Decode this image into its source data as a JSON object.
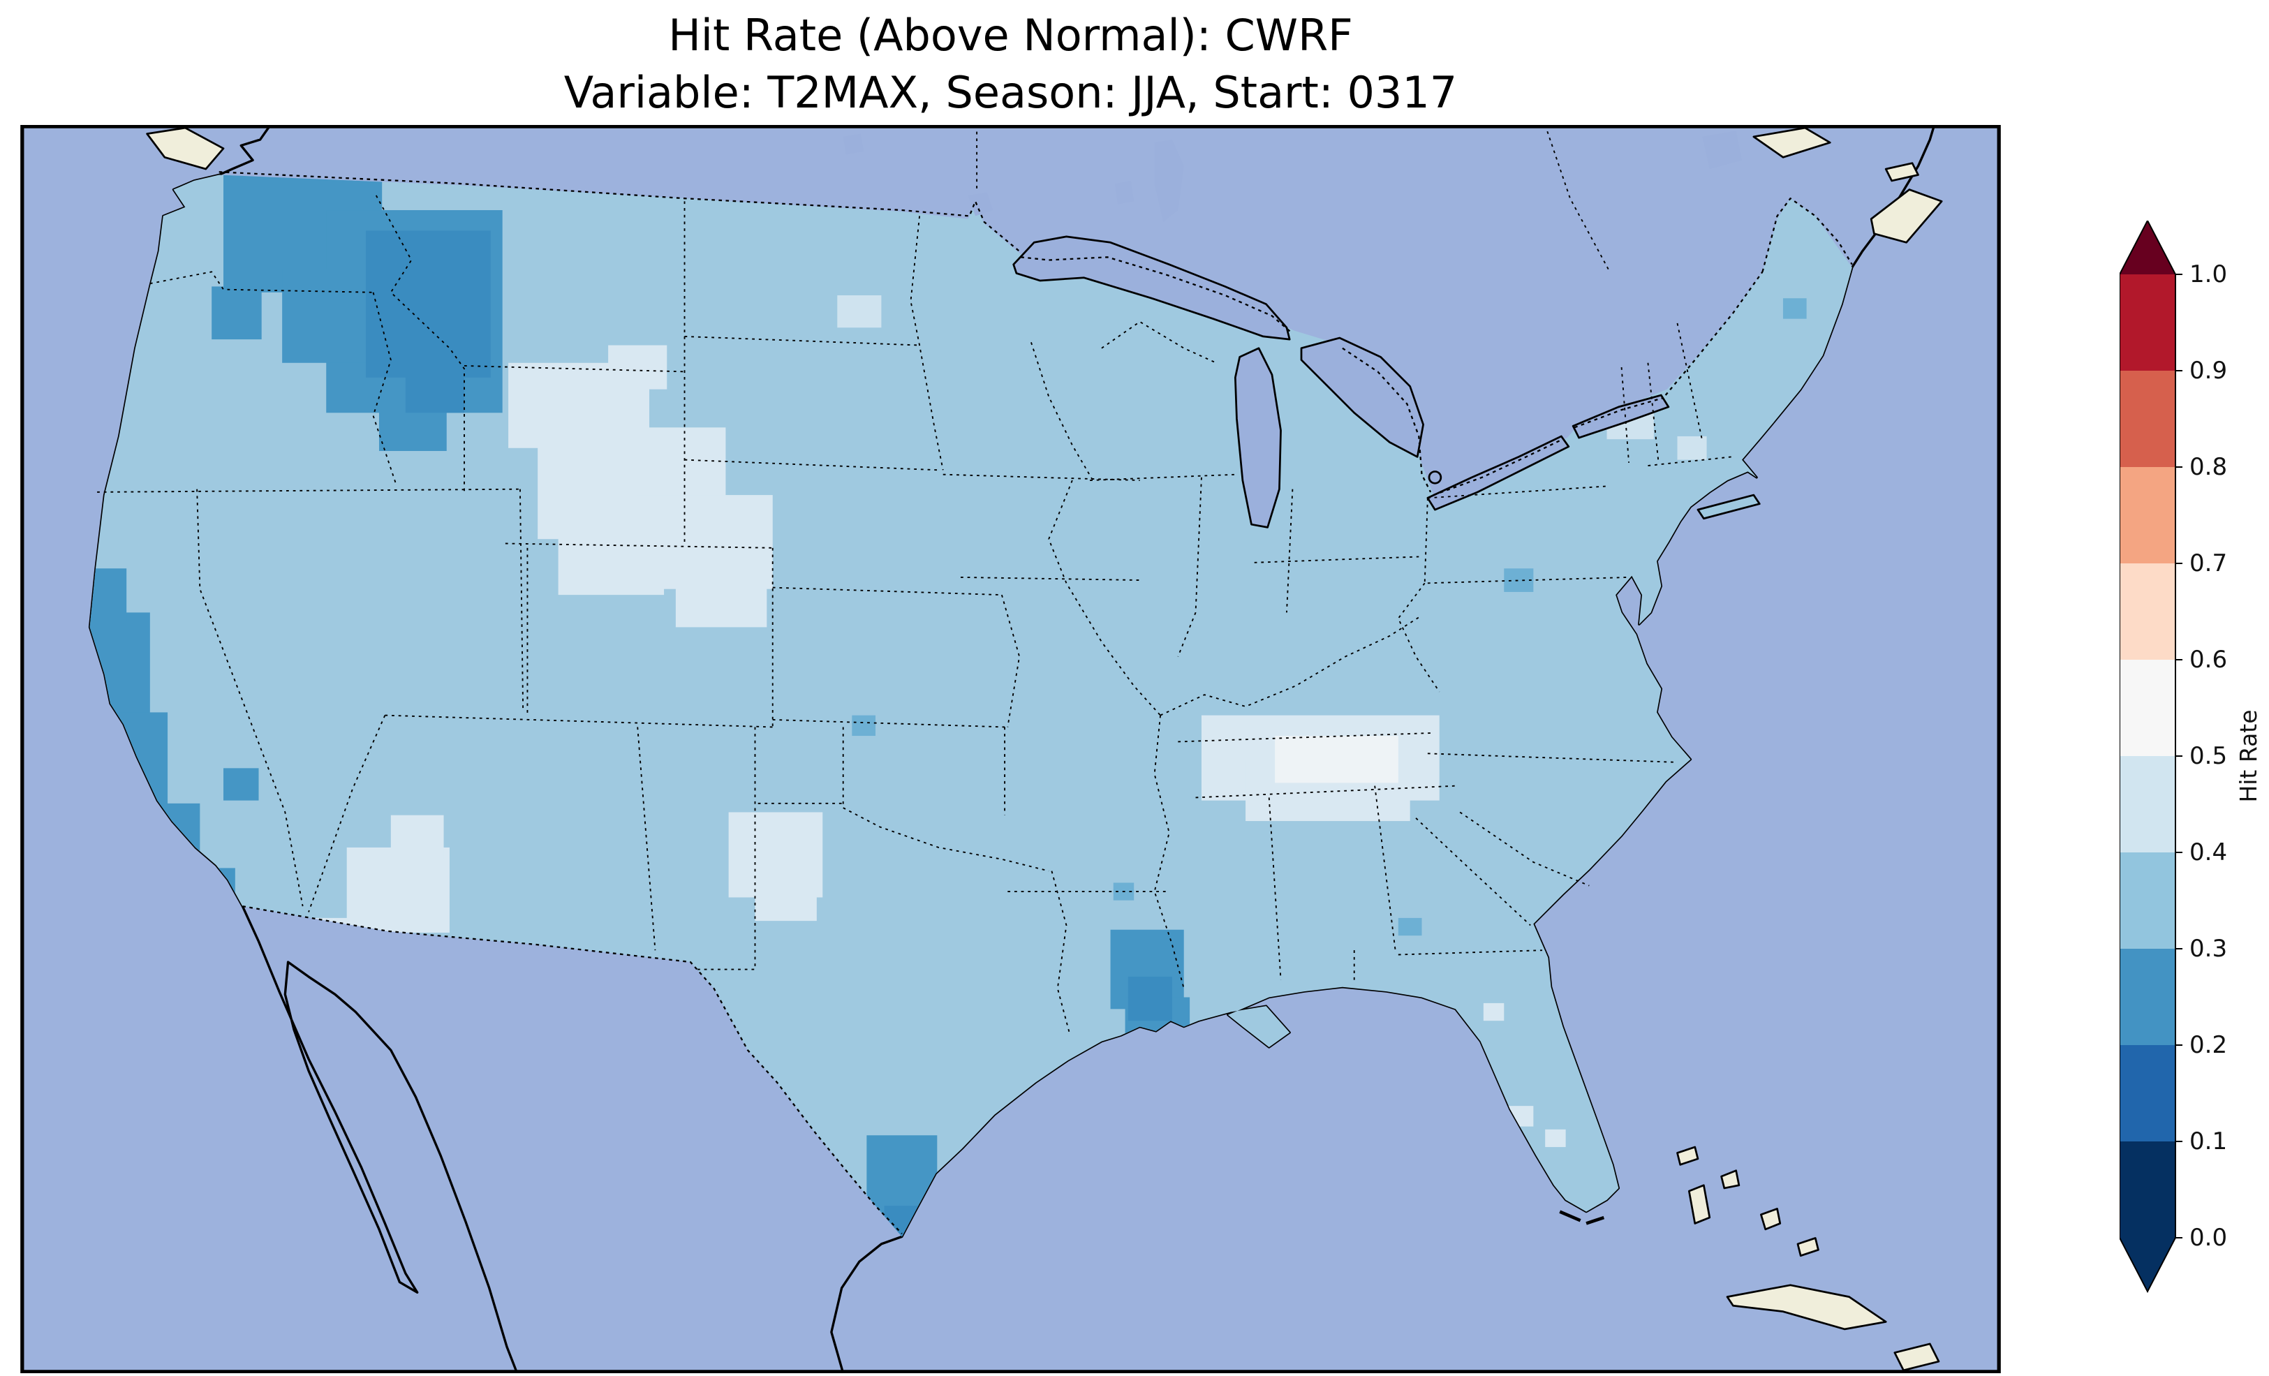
{
  "figure": {
    "title_line1": "Hit Rate (Above Normal): CWRF",
    "title_line2": "Variable: T2MAX, Season: JJA, Start: 0317"
  },
  "chart_data": {
    "type": "heatmap",
    "subtype": "geographic-gridded-choropleth",
    "title": "Hit Rate (Above Normal): CWRF",
    "subtitle": "Variable: T2MAX, Season: JJA, Start: 0317",
    "model": "CWRF",
    "variable": "T2MAX",
    "season": "JJA",
    "start": "0317",
    "region_shown": "Continental United States",
    "dominant_value_range": "0.3-0.4",
    "colorbar": {
      "label": "Hit Rate",
      "range": [
        0.0,
        1.0
      ],
      "ticks_top_to_bottom": [
        "1.0",
        "0.9",
        "0.8",
        "0.7",
        "0.6",
        "0.5",
        "0.4",
        "0.3",
        "0.2",
        "0.1",
        "0.0"
      ],
      "segments_top_to_bottom": [
        "#b2182b",
        "#d6604d",
        "#f4a582",
        "#fddbc7",
        "#f7f7f7",
        "#d1e5f0",
        "#92c5de",
        "#4393c3",
        "#2166ac",
        "#053061"
      ],
      "extend_top_color": "#67001f",
      "extend_bottom_color": "#053061"
    },
    "map_colors": {
      "ocean": "#9db2dd",
      "land": "#f0eedb",
      "lake": "#9bb0dc",
      "base_us": "#9fc9e0"
    },
    "regions": [
      {
        "name": "pacific-northwest-low",
        "value": 0.25,
        "color": "#4596c5",
        "rects": [
          [
            138,
            22,
            108,
            92
          ],
          [
            208,
            58,
            120,
            138
          ],
          [
            178,
            98,
            70,
            64
          ],
          [
            244,
            192,
            46,
            30
          ],
          [
            130,
            110,
            34,
            36
          ]
        ]
      },
      {
        "name": "idaho-montana-core",
        "value": 0.22,
        "color": "#3a8cc0",
        "rects": [
          [
            235,
            72,
            85,
            100
          ],
          [
            262,
            160,
            40,
            36
          ]
        ]
      },
      {
        "name": "california-coast-low",
        "value": 0.25,
        "color": "#4596c5",
        "rects": [
          [
            44,
            332,
            44,
            76
          ],
          [
            52,
            400,
            48,
            80
          ],
          [
            74,
            462,
            48,
            58
          ],
          [
            102,
            506,
            44,
            30
          ],
          [
            40,
            302,
            32,
            36
          ],
          [
            138,
            438,
            24,
            22
          ]
        ]
      },
      {
        "name": "wyoming-plains-high",
        "value": 0.45,
        "color": "#d9e8f2",
        "rects": [
          [
            332,
            162,
            96,
            58
          ],
          [
            352,
            206,
            128,
            76
          ],
          [
            420,
            252,
            92,
            64
          ],
          [
            366,
            270,
            72,
            50
          ],
          [
            446,
            300,
            62,
            42
          ],
          [
            400,
            150,
            40,
            30
          ]
        ]
      },
      {
        "name": "dakota-light-cells",
        "value": 0.42,
        "color": "#cfe3ef",
        "rects": [
          [
            556,
            116,
            30,
            22
          ]
        ]
      },
      {
        "name": "oklahoma-high",
        "value": 0.45,
        "color": "#d9e8f2",
        "rects": [
          [
            482,
            468,
            64,
            58
          ],
          [
            500,
            512,
            42,
            30
          ]
        ]
      },
      {
        "name": "new-mexico-high",
        "value": 0.45,
        "color": "#d9e8f2",
        "rects": [
          [
            222,
            492,
            70,
            58
          ],
          [
            252,
            470,
            36,
            30
          ],
          [
            200,
            540,
            30,
            24
          ]
        ]
      },
      {
        "name": "tennessee-valley-high",
        "value": 0.45,
        "color": "#d9e8f2",
        "rects": [
          [
            804,
            402,
            162,
            58
          ],
          [
            834,
            432,
            112,
            42
          ]
        ]
      },
      {
        "name": "tennessee-core",
        "value": 0.52,
        "color": "#eef3f6",
        "rects": [
          [
            854,
            416,
            84,
            32
          ]
        ]
      },
      {
        "name": "louisiana-low",
        "value": 0.25,
        "color": "#4596c5",
        "rects": [
          [
            742,
            548,
            50,
            54
          ],
          [
            752,
            594,
            44,
            38
          ]
        ]
      },
      {
        "name": "louisiana-core",
        "value": 0.22,
        "color": "#3a8cc0",
        "rects": [
          [
            754,
            580,
            30,
            30
          ]
        ]
      },
      {
        "name": "south-texas-low",
        "value": 0.25,
        "color": "#4596c5",
        "rects": [
          [
            576,
            688,
            48,
            60
          ],
          [
            586,
            740,
            34,
            44
          ]
        ]
      },
      {
        "name": "south-texas-core",
        "value": 0.22,
        "color": "#3a8cc0",
        "rects": [
          [
            588,
            736,
            28,
            32
          ]
        ]
      },
      {
        "name": "scattered-medium-cells",
        "value": 0.3,
        "color": "#6db0d4",
        "rects": [
          [
            1010,
            302,
            20,
            16
          ],
          [
            566,
            402,
            16,
            14
          ],
          [
            1200,
            118,
            16,
            14
          ],
          [
            744,
            516,
            14,
            12
          ],
          [
            938,
            540,
            16,
            12
          ]
        ]
      },
      {
        "name": "northeast-light-cells",
        "value": 0.42,
        "color": "#cfe3ef",
        "rects": [
          [
            1080,
            192,
            32,
            22
          ],
          [
            1128,
            212,
            20,
            16
          ]
        ]
      },
      {
        "name": "florida-light-cells",
        "value": 0.45,
        "color": "#d9e8f2",
        "rects": [
          [
            1012,
            668,
            18,
            14
          ],
          [
            1038,
            684,
            14,
            12
          ],
          [
            996,
            598,
            14,
            12
          ]
        ]
      }
    ]
  }
}
